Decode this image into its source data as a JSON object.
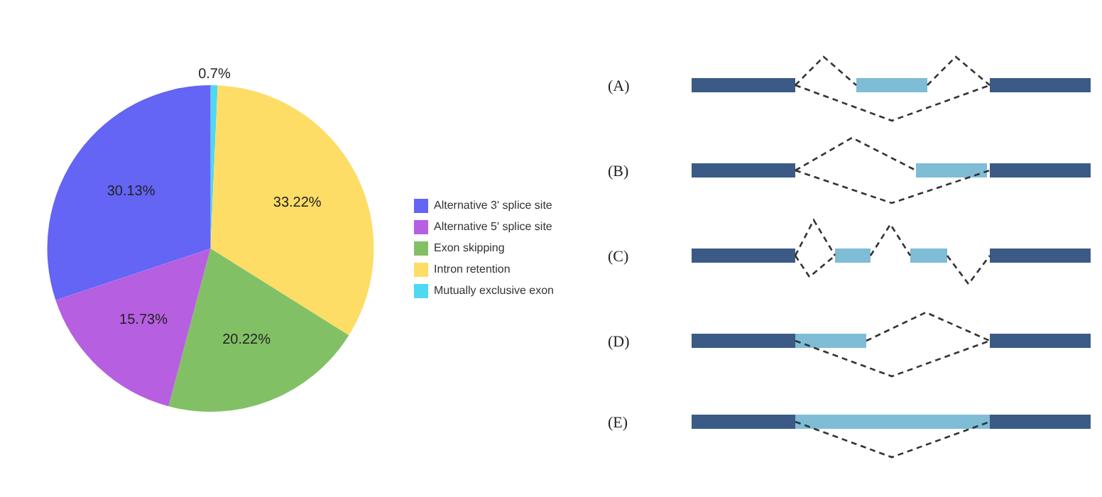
{
  "chart_data": {
    "type": "pie",
    "categories": [
      "Alternative 3' splice site",
      "Alternative 5' splice site",
      "Exon skipping",
      "Intron retention",
      "Mutually exclusive exon"
    ],
    "values": [
      30.13,
      15.73,
      20.22,
      33.22,
      0.7
    ],
    "value_labels": [
      "30.13%",
      "15.73%",
      "20.22%",
      "33.22%",
      "0.7%"
    ],
    "colors": [
      "#6464f5",
      "#b65fe0",
      "#82c066",
      "#fedd66",
      "#4fd8f2"
    ],
    "legend": "right",
    "annotations": [
      "(A)",
      "(B)",
      "(C)",
      "(D)",
      "(E)"
    ]
  }
}
